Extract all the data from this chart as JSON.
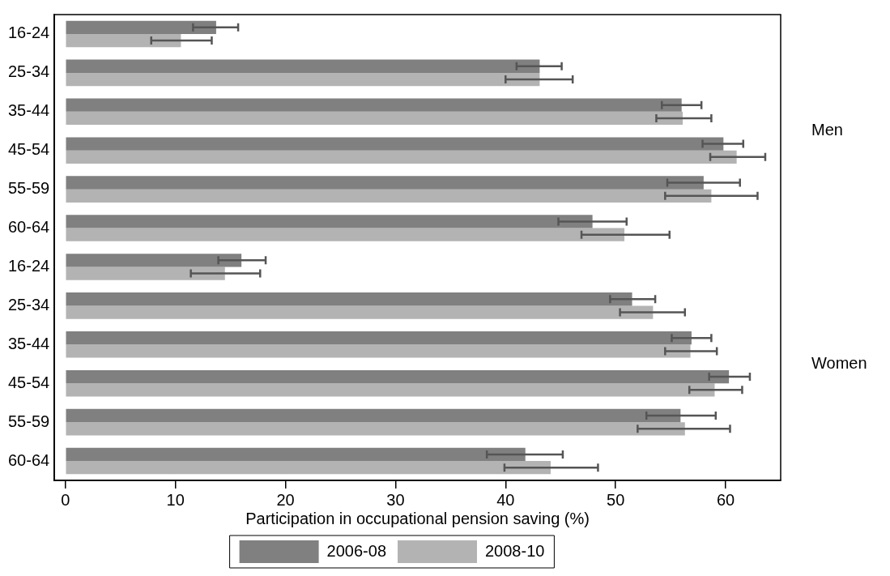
{
  "chart_data": {
    "type": "bar",
    "orientation": "horizontal",
    "xlabel": "Participation in occupational pension saving (%)",
    "categories": [
      "16-24",
      "25-34",
      "35-44",
      "45-54",
      "55-59",
      "60-64",
      "16-24",
      "25-34",
      "35-44",
      "45-54",
      "55-59",
      "60-64"
    ],
    "series": [
      {
        "name": "2006-08",
        "color": "#808080",
        "values": [
          13.7,
          43.1,
          56.0,
          59.8,
          58.0,
          47.9,
          16.0,
          51.5,
          56.9,
          60.3,
          55.9,
          41.8
        ],
        "errors": [
          [
            11.6,
            15.7
          ],
          [
            41.0,
            45.1
          ],
          [
            54.2,
            57.8
          ],
          [
            57.9,
            61.6
          ],
          [
            54.7,
            61.3
          ],
          [
            44.8,
            51.0
          ],
          [
            13.9,
            18.2
          ],
          [
            49.5,
            53.6
          ],
          [
            55.1,
            58.7
          ],
          [
            58.5,
            62.2
          ],
          [
            52.8,
            59.1
          ],
          [
            38.3,
            45.2
          ]
        ]
      },
      {
        "name": "2008-10",
        "color": "#b3b3b3",
        "values": [
          10.5,
          43.1,
          56.1,
          61.0,
          58.7,
          50.8,
          14.5,
          53.4,
          56.8,
          59.0,
          56.3,
          44.1
        ],
        "errors": [
          [
            7.8,
            13.3
          ],
          [
            40.0,
            46.1
          ],
          [
            53.7,
            58.7
          ],
          [
            58.6,
            63.6
          ],
          [
            54.5,
            62.9
          ],
          [
            46.9,
            54.9
          ],
          [
            11.4,
            17.7
          ],
          [
            50.4,
            56.3
          ],
          [
            54.5,
            59.2
          ],
          [
            56.7,
            61.5
          ],
          [
            52.0,
            60.4
          ],
          [
            39.9,
            48.4
          ]
        ]
      }
    ],
    "annotations": [
      "Men",
      "Women"
    ],
    "xlim": [
      -1,
      65
    ],
    "xticks": [
      0,
      10,
      20,
      30,
      40,
      50,
      60
    ],
    "grid": false,
    "legend": "bottom"
  }
}
